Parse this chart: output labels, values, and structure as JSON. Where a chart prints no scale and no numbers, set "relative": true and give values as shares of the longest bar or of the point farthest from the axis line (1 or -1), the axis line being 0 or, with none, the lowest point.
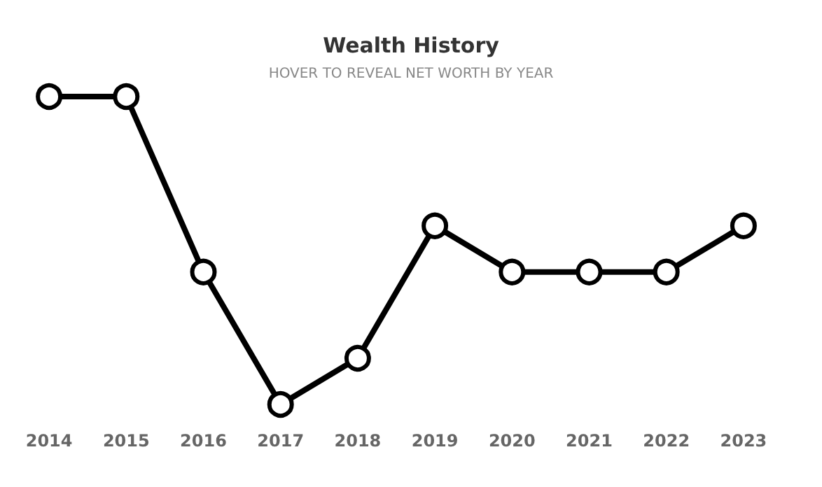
{
  "chart_data": {
    "type": "line",
    "title": "Wealth History",
    "subtitle": "HOVER TO REVEAL NET WORTH BY YEAR",
    "relative": true,
    "categories": [
      "2014",
      "2015",
      "2016",
      "2017",
      "2018",
      "2019",
      "2020",
      "2021",
      "2022",
      "2023"
    ],
    "series": [
      {
        "color": "#000000",
        "values": [
          1,
          1,
          0.43,
          0,
          0.15,
          0.58,
          0.43,
          0.43,
          0.43,
          0.58
        ]
      }
    ],
    "marker": "circle",
    "line_style": "solid",
    "grid": false
  }
}
